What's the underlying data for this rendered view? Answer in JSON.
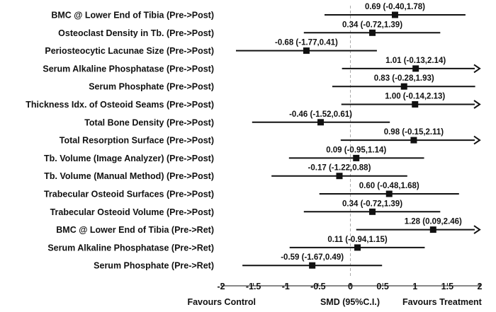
{
  "chart_data": {
    "type": "forest",
    "xlim": [
      -2,
      2
    ],
    "x_ticks": [
      -2,
      -1.5,
      -1,
      -0.5,
      0,
      0.5,
      1,
      1.5,
      2
    ],
    "x_tick_labels": [
      "-2",
      "-1.5",
      "-1",
      "-0.5",
      "0",
      "0.5",
      "1",
      "1.5",
      "2"
    ],
    "reference_line": 0,
    "reference_line_style": "dashed",
    "xlabel": "SMD (95%C.I.)",
    "left_annotation": "Favours  Control",
    "right_annotation": "Favours  Treatment",
    "rows": [
      {
        "label": "BMC @ Lower End of Tibia (Pre->Post)",
        "estimate": 0.69,
        "lower": -0.4,
        "upper": 1.78,
        "estimate_text": "0.69 (-0.40,1.78)",
        "arrow": false
      },
      {
        "label": "Osteoclast Density in Tb. (Pre->Post)",
        "estimate": 0.34,
        "lower": -0.72,
        "upper": 1.39,
        "estimate_text": "0.34 (-0.72,1.39)",
        "arrow": false
      },
      {
        "label": "Periosteocytic Lacunae Size (Pre->Post)",
        "estimate": -0.68,
        "lower": -1.77,
        "upper": 0.41,
        "estimate_text": "-0.68 (-1.77,0.41)",
        "arrow": false
      },
      {
        "label": "Serum Alkaline Phosphatase (Pre->Post)",
        "estimate": 1.01,
        "lower": -0.13,
        "upper": 2.14,
        "estimate_text": "1.01 (-0.13,2.14)",
        "arrow": true
      },
      {
        "label": "Serum Phosphate (Pre->Post)",
        "estimate": 0.83,
        "lower": -0.28,
        "upper": 1.93,
        "estimate_text": "0.83 (-0.28,1.93)",
        "arrow": false
      },
      {
        "label": "Thickness Idx. of Osteoid Seams (Pre->Post)",
        "estimate": 1.0,
        "lower": -0.14,
        "upper": 2.13,
        "estimate_text": "1.00 (-0.14,2.13)",
        "arrow": true
      },
      {
        "label": "Total Bone Density (Pre->Post)",
        "estimate": -0.46,
        "lower": -1.52,
        "upper": 0.61,
        "estimate_text": "-0.46 (-1.52,0.61)",
        "arrow": false
      },
      {
        "label": "Total Resorption Surface (Pre->Post)",
        "estimate": 0.98,
        "lower": -0.15,
        "upper": 2.11,
        "estimate_text": "0.98 (-0.15,2.11)",
        "arrow": true
      },
      {
        "label": "Tb. Volume (Image Analyzer) (Pre->Post)",
        "estimate": 0.09,
        "lower": -0.95,
        "upper": 1.14,
        "estimate_text": "0.09 (-0.95,1.14)",
        "arrow": false
      },
      {
        "label": "Tb. Volume (Manual Method) (Pre->Post)",
        "estimate": -0.17,
        "lower": -1.22,
        "upper": 0.88,
        "estimate_text": "-0.17 (-1.22,0.88)",
        "arrow": false
      },
      {
        "label": "Trabecular Osteoid Surfaces (Pre->Post)",
        "estimate": 0.6,
        "lower": -0.48,
        "upper": 1.68,
        "estimate_text": "0.60 (-0.48,1.68)",
        "arrow": false
      },
      {
        "label": "Trabecular Osteoid Volume (Pre->Post)",
        "estimate": 0.34,
        "lower": -0.72,
        "upper": 1.39,
        "estimate_text": "0.34 (-0.72,1.39)",
        "arrow": false
      },
      {
        "label": "BMC @ Lower End of Tibia (Pre->Ret)",
        "estimate": 1.28,
        "lower": 0.09,
        "upper": 2.46,
        "estimate_text": "1.28 (0.09,2.46)",
        "arrow": true
      },
      {
        "label": "Serum Alkaline Phosphatase (Pre->Ret)",
        "estimate": 0.11,
        "lower": -0.94,
        "upper": 1.15,
        "estimate_text": "0.11 (-0.94,1.15)",
        "arrow": false
      },
      {
        "label": "Serum Phosphate (Pre->Ret)",
        "estimate": -0.59,
        "lower": -1.67,
        "upper": 0.49,
        "estimate_text": "-0.59 (-1.67,0.49)",
        "arrow": false
      }
    ],
    "colors": {
      "ink": "#111111",
      "reference_line": "#aaaaaa"
    }
  }
}
